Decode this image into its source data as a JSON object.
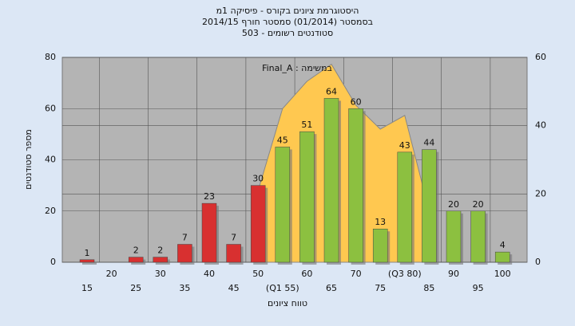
{
  "chart_data": {
    "type": "bar",
    "title": "היסטוגרמת ציונים בקורס - פיסיקה 1מ",
    "subtitle": [
      "בסמסטר (01/2014) סמסטר חורף 2014/15",
      "סטודנטים רשומים - 503"
    ],
    "x_label": "טווח ציונים",
    "y_label": "מספר סטודנטים",
    "categories": [
      "15",
      "20",
      "25",
      "30",
      "35",
      "40",
      "45",
      "50",
      "(Q1 55)",
      "60",
      "65",
      "70",
      "75",
      "(Q3 80)",
      "85",
      "90",
      "95",
      "100"
    ],
    "values": [
      1,
      null,
      2,
      2,
      7,
      23,
      7,
      30,
      45,
      51,
      64,
      60,
      13,
      43,
      44,
      20,
      20,
      4
    ],
    "colors": [
      "#d83030",
      "#d83030",
      "#d83030",
      "#d83030",
      "#d83030",
      "#d83030",
      "#d83030",
      "#d83030",
      "#8cc040",
      "#8cc040",
      "#8cc040",
      "#8cc040",
      "#8cc040",
      "#8cc040",
      "#8cc040",
      "#8cc040",
      "#8cc040",
      "#8cc040"
    ],
    "ylim": [
      0,
      80
    ],
    "yticks": [
      0,
      20,
      40,
      60,
      80
    ],
    "y2lim": [
      0,
      60
    ],
    "y2ticks": [
      0,
      20,
      40,
      60
    ],
    "area": {
      "label": "Final_A : במשימה",
      "color": "#ffc850",
      "axis": "y2",
      "values": [
        null,
        null,
        null,
        null,
        null,
        null,
        null,
        21,
        45,
        53,
        58,
        46,
        39,
        43,
        15,
        null,
        null,
        null
      ]
    },
    "grid": true
  }
}
